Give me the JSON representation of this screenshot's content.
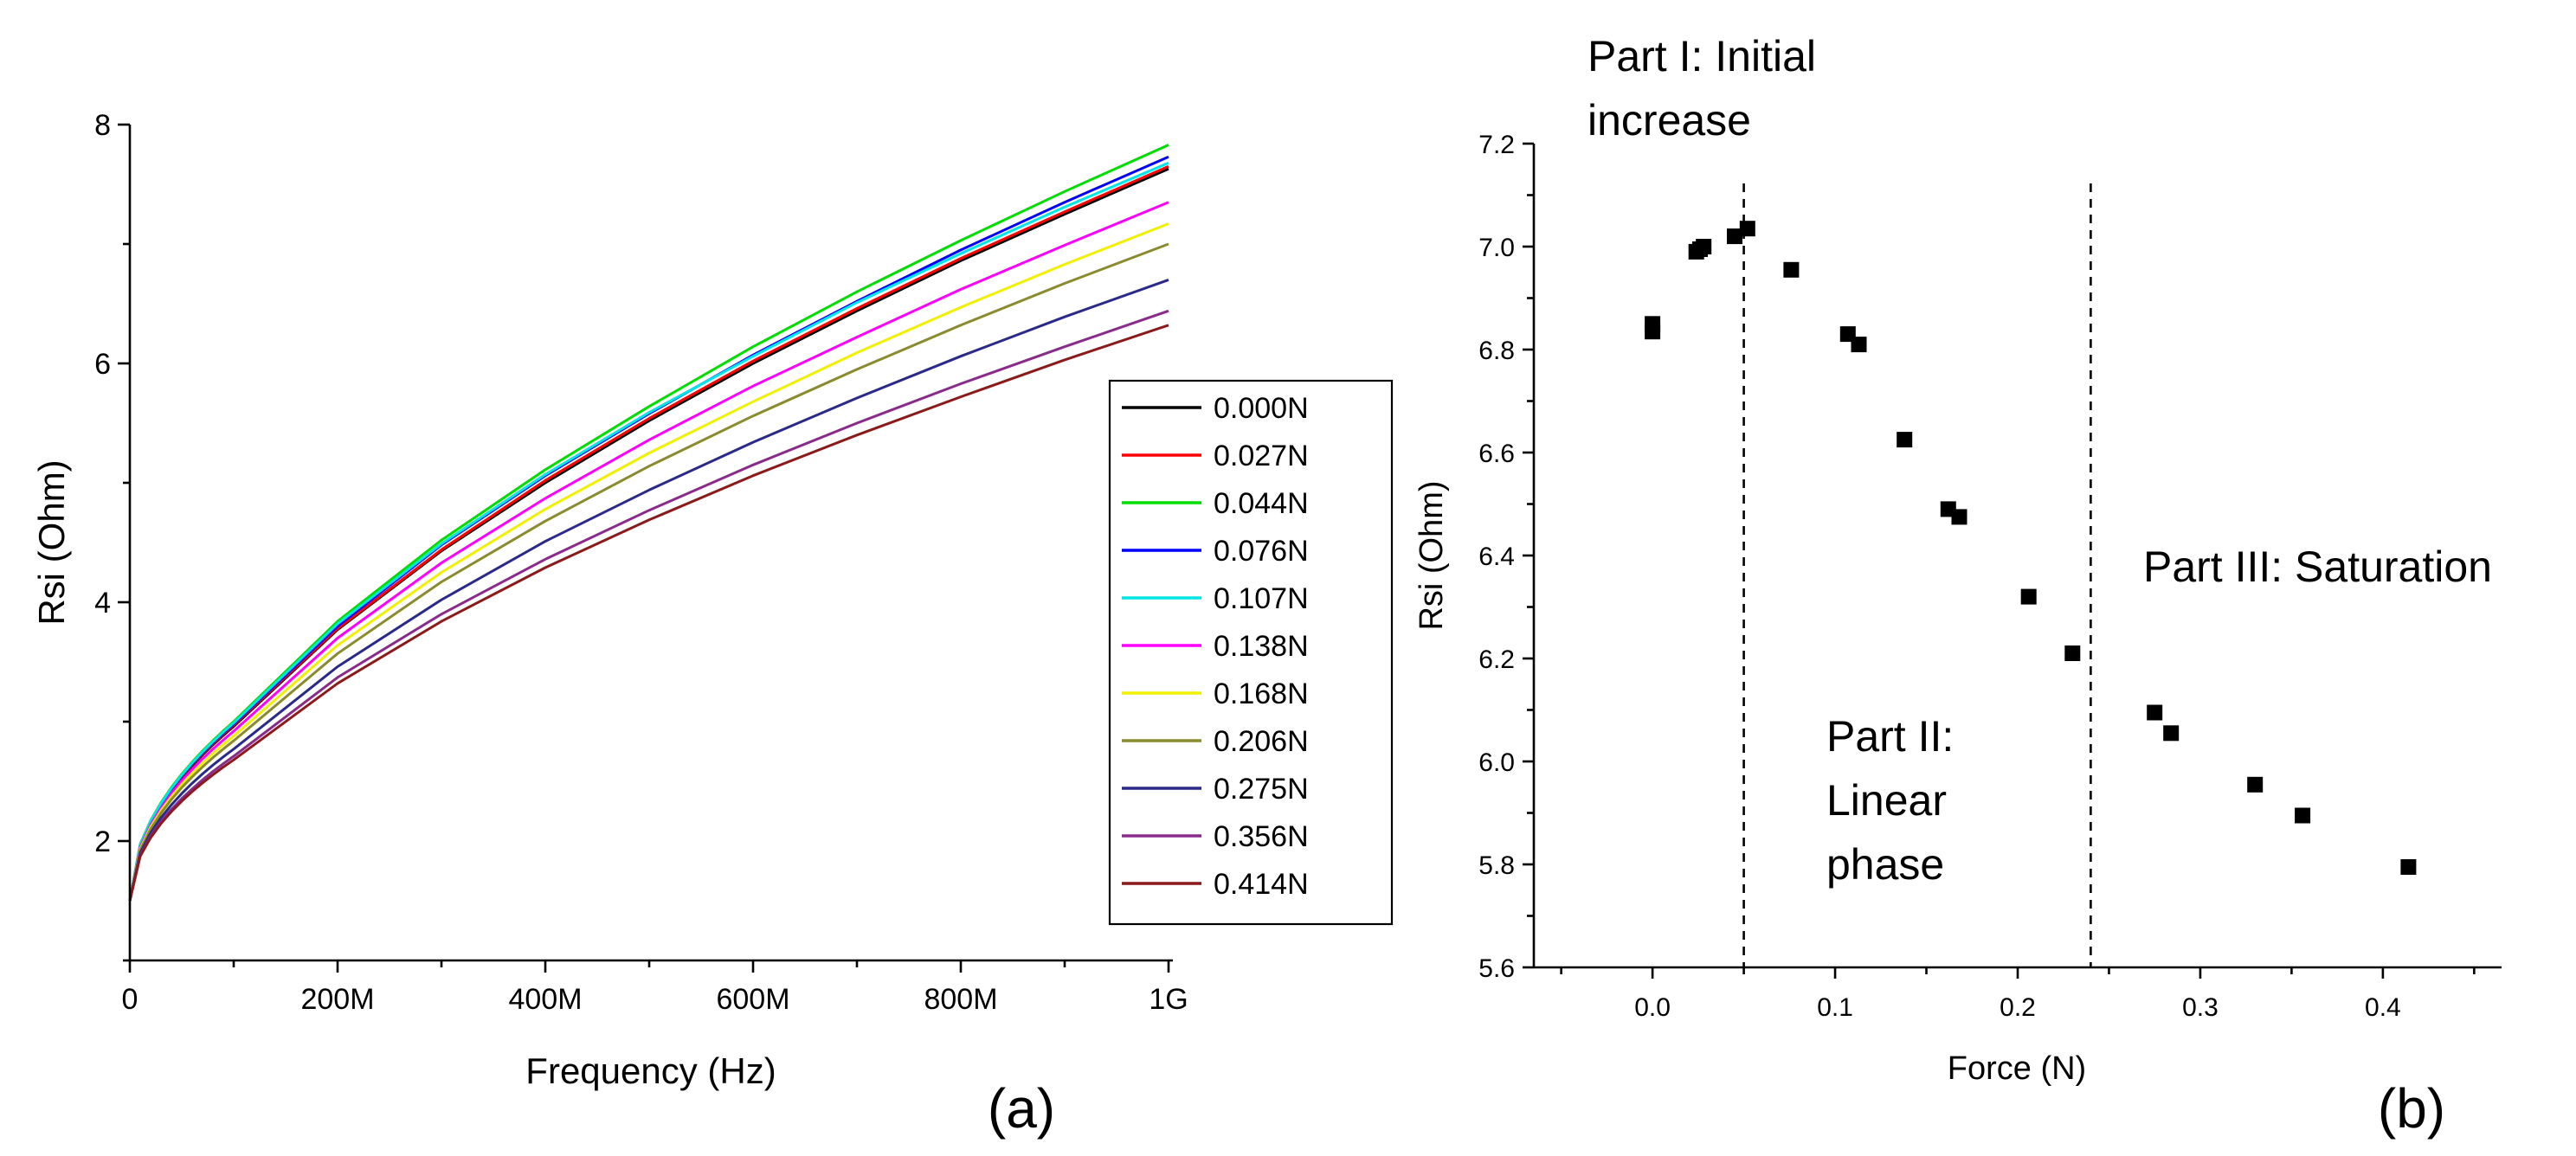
{
  "chart_data": [
    {
      "type": "line",
      "panel_label": "(a)",
      "xlabel": "Frequency (Hz)",
      "ylabel": "Rsi (Ohm)",
      "xlim": [
        0,
        1000000000
      ],
      "ylim": [
        1,
        8
      ],
      "x_ticks": [
        {
          "value": 0,
          "label": "0"
        },
        {
          "value": 200000000,
          "label": "200M"
        },
        {
          "value": 400000000,
          "label": "400M"
        },
        {
          "value": 600000000,
          "label": "600M"
        },
        {
          "value": 800000000,
          "label": "800M"
        },
        {
          "value": 1000000000,
          "label": "1G"
        }
      ],
      "y_ticks": [
        {
          "value": 2,
          "label": "2"
        },
        {
          "value": 4,
          "label": "4"
        },
        {
          "value": 6,
          "label": "6"
        },
        {
          "value": 8,
          "label": "8"
        }
      ],
      "legend_placement": "center-right",
      "x": [
        0,
        100000000,
        200000000,
        300000000,
        400000000,
        500000000,
        600000000,
        700000000,
        800000000,
        900000000,
        1000000000
      ],
      "series": [
        {
          "name": "0.000N",
          "color": "#000000",
          "values": [
            1.5,
            2.96,
            3.77,
            4.43,
            5.0,
            5.52,
            6.0,
            6.44,
            6.86,
            7.25,
            7.63
          ]
        },
        {
          "name": "0.027N",
          "color": "#ff0000",
          "values": [
            1.5,
            2.97,
            3.78,
            4.44,
            5.02,
            5.54,
            6.02,
            6.46,
            6.88,
            7.27,
            7.65
          ]
        },
        {
          "name": "0.044N",
          "color": "#00dd00",
          "values": [
            1.5,
            3.0,
            3.84,
            4.52,
            5.11,
            5.64,
            6.14,
            6.6,
            7.03,
            7.44,
            7.83
          ]
        },
        {
          "name": "0.076N",
          "color": "#0000ff",
          "values": [
            1.5,
            2.98,
            3.8,
            4.48,
            5.06,
            5.58,
            6.07,
            6.52,
            6.95,
            7.35,
            7.73
          ]
        },
        {
          "name": "0.107N",
          "color": "#00e5e5",
          "values": [
            1.5,
            2.99,
            3.82,
            4.49,
            5.07,
            5.59,
            6.06,
            6.51,
            6.92,
            7.31,
            7.68
          ]
        },
        {
          "name": "0.138N",
          "color": "#ff00ff",
          "values": [
            1.5,
            2.92,
            3.7,
            4.33,
            4.87,
            5.36,
            5.81,
            6.22,
            6.62,
            6.99,
            7.35
          ]
        },
        {
          "name": "0.168N",
          "color": "#f0f000",
          "values": [
            1.5,
            2.88,
            3.64,
            4.25,
            4.78,
            5.25,
            5.68,
            6.09,
            6.47,
            6.83,
            7.17
          ]
        },
        {
          "name": "0.206N",
          "color": "#8a8a2e",
          "values": [
            1.5,
            2.84,
            3.57,
            4.17,
            4.68,
            5.14,
            5.56,
            5.95,
            6.32,
            6.67,
            7.0
          ]
        },
        {
          "name": "0.275N",
          "color": "#2a2a8a",
          "values": [
            1.5,
            2.77,
            3.46,
            4.02,
            4.51,
            4.94,
            5.34,
            5.71,
            6.06,
            6.39,
            6.7
          ]
        },
        {
          "name": "0.356N",
          "color": "#8a2a8a",
          "values": [
            1.5,
            2.71,
            3.37,
            3.9,
            4.36,
            4.77,
            5.15,
            5.5,
            5.83,
            6.14,
            6.44
          ]
        },
        {
          "name": "0.414N",
          "color": "#8b1a1a",
          "values": [
            1.5,
            2.68,
            3.32,
            3.84,
            4.29,
            4.69,
            5.06,
            5.4,
            5.72,
            6.03,
            6.32
          ]
        }
      ]
    },
    {
      "type": "scatter",
      "panel_label": "(b)",
      "xlabel": "Force (N)",
      "ylabel": "Rsi (Ohm)",
      "xlim": [
        -0.065,
        0.465
      ],
      "ylim": [
        5.6,
        7.2
      ],
      "x_ticks": [
        {
          "value": 0.0,
          "label": "0.0"
        },
        {
          "value": 0.1,
          "label": "0.1"
        },
        {
          "value": 0.2,
          "label": "0.2"
        },
        {
          "value": 0.3,
          "label": "0.3"
        },
        {
          "value": 0.4,
          "label": "0.4"
        }
      ],
      "y_ticks": [
        {
          "value": 5.6,
          "label": "5.6"
        },
        {
          "value": 5.8,
          "label": "5.8"
        },
        {
          "value": 6.0,
          "label": "6.0"
        },
        {
          "value": 6.2,
          "label": "6.2"
        },
        {
          "value": 6.4,
          "label": "6.4"
        },
        {
          "value": 6.6,
          "label": "6.6"
        },
        {
          "value": 6.8,
          "label": "6.8"
        },
        {
          "value": 7.0,
          "label": "7.0"
        },
        {
          "value": 7.2,
          "label": "7.2"
        }
      ],
      "points": [
        {
          "x": 0.0,
          "y": 6.835
        },
        {
          "x": 0.0,
          "y": 6.85
        },
        {
          "x": 0.024,
          "y": 6.99
        },
        {
          "x": 0.026,
          "y": 6.995
        },
        {
          "x": 0.028,
          "y": 7.0
        },
        {
          "x": 0.045,
          "y": 7.02
        },
        {
          "x": 0.052,
          "y": 7.035
        },
        {
          "x": 0.076,
          "y": 6.955
        },
        {
          "x": 0.107,
          "y": 6.83
        },
        {
          "x": 0.113,
          "y": 6.81
        },
        {
          "x": 0.138,
          "y": 6.625
        },
        {
          "x": 0.162,
          "y": 6.49
        },
        {
          "x": 0.168,
          "y": 6.475
        },
        {
          "x": 0.206,
          "y": 6.32
        },
        {
          "x": 0.23,
          "y": 6.21
        },
        {
          "x": 0.275,
          "y": 6.095
        },
        {
          "x": 0.284,
          "y": 6.055
        },
        {
          "x": 0.33,
          "y": 5.955
        },
        {
          "x": 0.356,
          "y": 5.895
        },
        {
          "x": 0.414,
          "y": 5.795
        }
      ],
      "dividers": [
        0.05,
        0.24
      ],
      "annotations": {
        "part1_line1": "Part I: Initial",
        "part1_line2": "increase",
        "part2_line1": "Part II:",
        "part2_line2": "Linear",
        "part2_line3": "phase",
        "part3": "Part III: Saturation"
      }
    }
  ]
}
